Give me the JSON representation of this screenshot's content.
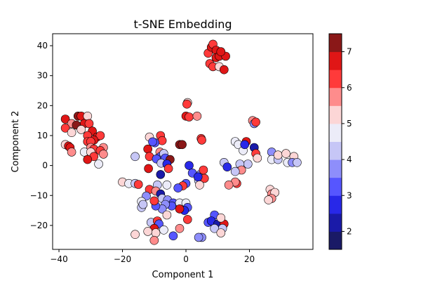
{
  "chart_data": {
    "type": "scatter",
    "title": "t-SNE Embedding",
    "xlabel": "Component 1",
    "ylabel": "Component 2",
    "xlim": [
      -42,
      40
    ],
    "ylim": [
      -28,
      44
    ],
    "xticks": [
      -40,
      -20,
      0,
      20
    ],
    "yticks": [
      -20,
      -10,
      0,
      10,
      20,
      30,
      40
    ],
    "colorbar": {
      "min": 1.5,
      "max": 7.5,
      "ticks": [
        2,
        3,
        4,
        5,
        6,
        7
      ],
      "bins": [
        {
          "from": 1.5,
          "to": 2.0,
          "color": "#1a1a66"
        },
        {
          "from": 2.0,
          "to": 2.5,
          "color": "#1a1aa8"
        },
        {
          "from": 2.5,
          "to": 3.0,
          "color": "#2828e8"
        },
        {
          "from": 3.0,
          "to": 3.5,
          "color": "#5656ff"
        },
        {
          "from": 3.5,
          "to": 4.0,
          "color": "#8e8efb"
        },
        {
          "from": 4.0,
          "to": 4.5,
          "color": "#c6c6f6"
        },
        {
          "from": 4.5,
          "to": 5.0,
          "color": "#ececf8"
        },
        {
          "from": 5.0,
          "to": 5.5,
          "color": "#fcd6d6"
        },
        {
          "from": 5.5,
          "to": 6.0,
          "color": "#fe8c8c"
        },
        {
          "from": 6.0,
          "to": 6.5,
          "color": "#ff3a3a"
        },
        {
          "from": 6.5,
          "to": 7.0,
          "color": "#e01616"
        },
        {
          "from": 7.0,
          "to": 7.5,
          "color": "#8a1818"
        }
      ]
    },
    "points": [
      {
        "x": -38,
        "y": 15.5,
        "c": 6.6
      },
      {
        "x": -36,
        "y": 14,
        "c": 5.7
      },
      {
        "x": -34,
        "y": 16.5,
        "c": 7.0
      },
      {
        "x": -33,
        "y": 16.5,
        "c": 6.8
      },
      {
        "x": -31,
        "y": 16.5,
        "c": 5.2
      },
      {
        "x": -32,
        "y": 14,
        "c": 6.6
      },
      {
        "x": -30.5,
        "y": 14,
        "c": 6.4
      },
      {
        "x": -34.5,
        "y": 13.5,
        "c": 7.2
      },
      {
        "x": -38,
        "y": 12.5,
        "c": 6.4
      },
      {
        "x": -33,
        "y": 12,
        "c": 5.2
      },
      {
        "x": -36,
        "y": 11,
        "c": 5.3
      },
      {
        "x": -29.5,
        "y": 11.5,
        "c": 6.6
      },
      {
        "x": -31,
        "y": 10,
        "c": 6.4
      },
      {
        "x": -28,
        "y": 9.5,
        "c": 6.6
      },
      {
        "x": -27,
        "y": 10,
        "c": 6.2
      },
      {
        "x": -29,
        "y": 8.5,
        "c": 6.8
      },
      {
        "x": -31,
        "y": 8,
        "c": 6.4
      },
      {
        "x": -30,
        "y": 8,
        "c": 6.4
      },
      {
        "x": -38,
        "y": 7,
        "c": 5.3
      },
      {
        "x": -37,
        "y": 6.5,
        "c": 6.6
      },
      {
        "x": -36.5,
        "y": 6,
        "c": 6.7
      },
      {
        "x": -26,
        "y": 6,
        "c": 5.5
      },
      {
        "x": -30,
        "y": 6,
        "c": 5.7
      },
      {
        "x": -29,
        "y": 5.5,
        "c": 6.2
      },
      {
        "x": -27,
        "y": 5,
        "c": 6.2
      },
      {
        "x": -32,
        "y": 4.5,
        "c": 4.7
      },
      {
        "x": -36,
        "y": 4.5,
        "c": 5.6
      },
      {
        "x": -30,
        "y": 4.5,
        "c": 5.4
      },
      {
        "x": -26,
        "y": 3.8,
        "c": 5.8
      },
      {
        "x": -29,
        "y": 3,
        "c": 6.4
      },
      {
        "x": -31,
        "y": 2,
        "c": 6.6
      },
      {
        "x": -27.5,
        "y": 0.5,
        "c": 4.6
      },
      {
        "x": 7,
        "y": 37.5,
        "c": 6.4
      },
      {
        "x": 8,
        "y": 39.5,
        "c": 6.6
      },
      {
        "x": 8.5,
        "y": 40.5,
        "c": 6.2
      },
      {
        "x": 9.5,
        "y": 38.5,
        "c": 6.8
      },
      {
        "x": 9.5,
        "y": 36,
        "c": 6.6
      },
      {
        "x": 10.5,
        "y": 36.5,
        "c": 6.7
      },
      {
        "x": 12.5,
        "y": 36.5,
        "c": 6.6
      },
      {
        "x": 11,
        "y": 38,
        "c": 6.5
      },
      {
        "x": 7.5,
        "y": 34,
        "c": 6.4
      },
      {
        "x": 8.5,
        "y": 33,
        "c": 6.4
      },
      {
        "x": 10.5,
        "y": 33,
        "c": 5.3
      },
      {
        "x": 12,
        "y": 32,
        "c": 6.7
      },
      {
        "x": 0.5,
        "y": 21,
        "c": 5.4
      },
      {
        "x": 0.3,
        "y": 20.5,
        "c": 6.2
      },
      {
        "x": 0,
        "y": 16.5,
        "c": 6.7
      },
      {
        "x": 1,
        "y": 16.2,
        "c": 6.4
      },
      {
        "x": 3.5,
        "y": 16.5,
        "c": 5.9
      },
      {
        "x": 4.8,
        "y": 9,
        "c": 6.4
      },
      {
        "x": 5,
        "y": 8.5,
        "c": 6.4
      },
      {
        "x": -2,
        "y": 7,
        "c": 7.2
      },
      {
        "x": -1.2,
        "y": 7,
        "c": 7.0
      },
      {
        "x": -11.5,
        "y": 9.5,
        "c": 5.2
      },
      {
        "x": -8,
        "y": 10,
        "c": 6.4
      },
      {
        "x": -7.5,
        "y": 8.3,
        "c": 6.2
      },
      {
        "x": -12,
        "y": 5.5,
        "c": 6.6
      },
      {
        "x": -11.5,
        "y": 3,
        "c": 6.4
      },
      {
        "x": -9.8,
        "y": 7.6,
        "c": 3.2
      },
      {
        "x": -10.5,
        "y": 7.9,
        "c": 3.0
      },
      {
        "x": -8.2,
        "y": 4.5,
        "c": 5.8
      },
      {
        "x": -8,
        "y": 3,
        "c": 3.2
      },
      {
        "x": -7,
        "y": 4,
        "c": 4.2
      },
      {
        "x": -6.5,
        "y": 2.5,
        "c": 3.1
      },
      {
        "x": -5,
        "y": 2,
        "c": 7.2
      },
      {
        "x": -9.3,
        "y": 2.2,
        "c": 3.0
      },
      {
        "x": -7.8,
        "y": 0.8,
        "c": 4.3
      },
      {
        "x": -6,
        "y": 0.5,
        "c": 2.6
      },
      {
        "x": -5.5,
        "y": -1,
        "c": 6.4
      },
      {
        "x": -11.8,
        "y": -1,
        "c": 6.9
      },
      {
        "x": -8,
        "y": -3,
        "c": 2.2
      },
      {
        "x": -16,
        "y": 3,
        "c": 4.3
      },
      {
        "x": 1,
        "y": 0,
        "c": 2.8
      },
      {
        "x": 2,
        "y": -2.5,
        "c": 3.2
      },
      {
        "x": 4.5,
        "y": -3,
        "c": 3.5
      },
      {
        "x": 5.5,
        "y": -1.5,
        "c": 6.2
      },
      {
        "x": 4,
        "y": -5,
        "c": 4.4
      },
      {
        "x": 5.8,
        "y": -4.3,
        "c": 6.2
      },
      {
        "x": 4.3,
        "y": -6.5,
        "c": 5.2
      },
      {
        "x": 0,
        "y": -6,
        "c": 3.0
      },
      {
        "x": -1,
        "y": -6.8,
        "c": 6.2
      },
      {
        "x": -2.5,
        "y": -7.5,
        "c": 3.2
      },
      {
        "x": 3.8,
        "y": -3.8,
        "c": 2.5
      },
      {
        "x": -20,
        "y": -5.5,
        "c": 5.2
      },
      {
        "x": -18,
        "y": -6,
        "c": 4.5
      },
      {
        "x": -16,
        "y": -6,
        "c": 4.0
      },
      {
        "x": -15,
        "y": -6.3,
        "c": 6.3
      },
      {
        "x": -11.5,
        "y": -8,
        "c": 6.3
      },
      {
        "x": -9,
        "y": -6.5,
        "c": 4.4
      },
      {
        "x": -6,
        "y": -6.5,
        "c": 4.5
      },
      {
        "x": -9.5,
        "y": -8.5,
        "c": 5.8
      },
      {
        "x": -8,
        "y": -9.5,
        "c": 2.2
      },
      {
        "x": -7.5,
        "y": -11,
        "c": 4.2
      },
      {
        "x": -5.8,
        "y": -11.5,
        "c": 3.8
      },
      {
        "x": -4,
        "y": -12.5,
        "c": 3.2
      },
      {
        "x": -2,
        "y": -12.5,
        "c": 4.5
      },
      {
        "x": 0,
        "y": -12.5,
        "c": 4.7
      },
      {
        "x": 0.5,
        "y": -14,
        "c": 3.2
      },
      {
        "x": -0.5,
        "y": -15,
        "c": 2.7
      },
      {
        "x": -2,
        "y": -14.5,
        "c": 6.8
      },
      {
        "x": -4.5,
        "y": -13.5,
        "c": 3.2
      },
      {
        "x": -6.5,
        "y": -13,
        "c": 3.6
      },
      {
        "x": -7.5,
        "y": -14.5,
        "c": 3.8
      },
      {
        "x": -9.5,
        "y": -13.5,
        "c": 3.2
      },
      {
        "x": -10,
        "y": -11.8,
        "c": 6.4
      },
      {
        "x": -12.5,
        "y": -10.2,
        "c": 3.6
      },
      {
        "x": -14,
        "y": -12,
        "c": 4.5
      },
      {
        "x": -14,
        "y": -14,
        "c": 4.3
      },
      {
        "x": -13.5,
        "y": -13,
        "c": 4.0
      },
      {
        "x": -6,
        "y": -16.5,
        "c": 5.2
      },
      {
        "x": -11,
        "y": -19,
        "c": 4.3
      },
      {
        "x": -9,
        "y": -18.5,
        "c": 6.2
      },
      {
        "x": -8.5,
        "y": -19.5,
        "c": 3.0
      },
      {
        "x": -7,
        "y": -21.5,
        "c": 4.6
      },
      {
        "x": -10,
        "y": -21,
        "c": 6.8
      },
      {
        "x": -9.5,
        "y": -22.5,
        "c": 5.2
      },
      {
        "x": -12,
        "y": -22,
        "c": 5.3
      },
      {
        "x": -10,
        "y": -25,
        "c": 5.7
      },
      {
        "x": -16,
        "y": -23,
        "c": 5.3
      },
      {
        "x": -4,
        "y": -23.5,
        "c": 3.1
      },
      {
        "x": -2,
        "y": -21,
        "c": 5.8
      },
      {
        "x": 0.5,
        "y": -18,
        "c": 6.3
      },
      {
        "x": 9,
        "y": -16.5,
        "c": 3.1
      },
      {
        "x": 7,
        "y": -19,
        "c": 3.0
      },
      {
        "x": 8,
        "y": -18.5,
        "c": 2.7
      },
      {
        "x": 10,
        "y": -19.5,
        "c": 2.2
      },
      {
        "x": 12,
        "y": -19.5,
        "c": 6.6
      },
      {
        "x": 11,
        "y": -17.5,
        "c": 5.3
      },
      {
        "x": 11.5,
        "y": -21,
        "c": 4.4
      },
      {
        "x": 9,
        "y": -21,
        "c": 4.4
      },
      {
        "x": 11,
        "y": -22.5,
        "c": 5.3
      },
      {
        "x": 5,
        "y": -24,
        "c": 3.6
      },
      {
        "x": 4,
        "y": -24,
        "c": 3.8
      },
      {
        "x": 15.5,
        "y": 8,
        "c": 4.6
      },
      {
        "x": 16.5,
        "y": 7,
        "c": 4.6
      },
      {
        "x": 18,
        "y": 5,
        "c": 4.5
      },
      {
        "x": 19,
        "y": 8,
        "c": 6.8
      },
      {
        "x": 18.5,
        "y": 7,
        "c": 2.6
      },
      {
        "x": 21,
        "y": 15,
        "c": 5.7
      },
      {
        "x": 21.5,
        "y": 14,
        "c": 3.6
      },
      {
        "x": 22,
        "y": 14.5,
        "c": 6.4
      },
      {
        "x": 21.5,
        "y": 6,
        "c": 2.2
      },
      {
        "x": 22,
        "y": 4,
        "c": 6.2
      },
      {
        "x": 22.5,
        "y": 2.5,
        "c": 5.3
      },
      {
        "x": 19.5,
        "y": 0.5,
        "c": 4.3
      },
      {
        "x": 17,
        "y": 0.5,
        "c": 4.2
      },
      {
        "x": 17.5,
        "y": -1.5,
        "c": 5.8
      },
      {
        "x": 15.5,
        "y": -2,
        "c": 4.3
      },
      {
        "x": 12,
        "y": 1,
        "c": 4.4
      },
      {
        "x": 13,
        "y": -0.5,
        "c": 2.7
      },
      {
        "x": 16,
        "y": -6,
        "c": 6.4
      },
      {
        "x": 15.5,
        "y": -5.5,
        "c": 5.8
      },
      {
        "x": 13.5,
        "y": -6.5,
        "c": 5.8
      },
      {
        "x": 27,
        "y": 4.5,
        "c": 3.8
      },
      {
        "x": 27,
        "y": 2,
        "c": 4.5
      },
      {
        "x": 29,
        "y": 2,
        "c": 4.4
      },
      {
        "x": 29,
        "y": 3.5,
        "c": 5.3
      },
      {
        "x": 31.5,
        "y": 4,
        "c": 5.2
      },
      {
        "x": 32,
        "y": 1,
        "c": 4.6
      },
      {
        "x": 34,
        "y": 3,
        "c": 5.2
      },
      {
        "x": 33.5,
        "y": 1,
        "c": 3.6
      },
      {
        "x": 35,
        "y": 1,
        "c": 4.4
      },
      {
        "x": 26.5,
        "y": -8,
        "c": 5.2
      },
      {
        "x": 27,
        "y": -9.5,
        "c": 5.7
      },
      {
        "x": 28,
        "y": -9,
        "c": 5.2
      },
      {
        "x": 27,
        "y": -11,
        "c": 5.6
      },
      {
        "x": 26,
        "y": -11.5,
        "c": 5.3
      }
    ]
  }
}
